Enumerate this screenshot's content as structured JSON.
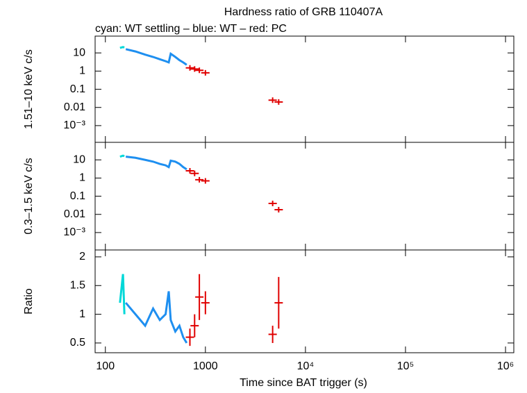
{
  "chart_data": [
    {
      "type": "scatter",
      "title": "Hardness ratio of GRB 110407A",
      "subtitle": "cyan: WT settling – blue: WT – red: PC",
      "ylabel": "1.51–10 keV c/s",
      "log_y": true,
      "ylim": [
        0.00012,
        84
      ],
      "yticks": [
        10,
        1,
        0.1,
        0.01,
        {
          "value": 0.001,
          "label": "10⁻³"
        }
      ],
      "series": [
        {
          "color": "#00d8d8",
          "marker": "line",
          "x": [
            140,
            150,
            155
          ],
          "values": [
            19,
            21,
            20
          ]
        },
        {
          "color": "#1e8ff0",
          "marker": "line",
          "x": [
            160,
            200,
            250,
            300,
            350,
            400,
            430,
            450,
            500,
            550,
            600,
            650
          ],
          "values": [
            16,
            12,
            8,
            6,
            4.5,
            3.5,
            3,
            9,
            6,
            4,
            3,
            2.2
          ]
        },
        {
          "color": "#e00000",
          "marker": "cross",
          "x": [
            700,
            780,
            870,
            1000,
            4700,
            5400
          ],
          "values": [
            1.5,
            1.3,
            1.1,
            0.8,
            0.025,
            0.02
          ]
        }
      ]
    },
    {
      "type": "scatter",
      "ylabel": "0.3–1.5 keV c/s",
      "log_y": true,
      "ylim": [
        0.00011,
        92
      ],
      "yticks": [
        10,
        1,
        0.1,
        0.01,
        {
          "value": 0.001,
          "label": "10⁻³"
        }
      ],
      "series": [
        {
          "color": "#00d8d8",
          "marker": "line",
          "x": [
            140,
            150,
            155
          ],
          "values": [
            15,
            17,
            16
          ]
        },
        {
          "color": "#1e8ff0",
          "marker": "line",
          "x": [
            160,
            200,
            250,
            300,
            350,
            400,
            430,
            450,
            500,
            550,
            600,
            650
          ],
          "values": [
            15,
            13,
            10,
            8,
            6,
            5,
            4,
            9,
            8,
            6,
            4,
            3
          ]
        },
        {
          "color": "#e00000",
          "marker": "cross",
          "x": [
            700,
            780,
            870,
            1000,
            4700,
            5400
          ],
          "values": [
            2.5,
            1.8,
            0.8,
            0.7,
            0.04,
            0.018
          ]
        }
      ]
    },
    {
      "type": "scatter",
      "ylabel": "Ratio",
      "xlabel": "Time since BAT trigger (s)",
      "log_x": true,
      "xlim": [
        79,
        1210000
      ],
      "xticks": [
        100,
        1000,
        {
          "value": 10000,
          "label": "10⁴"
        },
        {
          "value": 100000,
          "label": "10⁵"
        },
        {
          "value": 1000000,
          "label": "10⁶"
        }
      ],
      "log_y": false,
      "ylim": [
        0.33,
        2.12
      ],
      "yticks": [
        2,
        1.5,
        1,
        0.5
      ],
      "series": [
        {
          "color": "#00d8d8",
          "marker": "line",
          "x": [
            140,
            150,
            155
          ],
          "values": [
            1.2,
            1.7,
            1.0
          ]
        },
        {
          "color": "#1e8ff0",
          "marker": "line",
          "x": [
            160,
            200,
            250,
            300,
            350,
            400,
            430,
            450,
            500,
            550,
            600,
            650
          ],
          "values": [
            1.2,
            1.0,
            0.8,
            1.1,
            0.9,
            1.0,
            1.4,
            0.9,
            0.7,
            0.8,
            0.6,
            0.5
          ]
        },
        {
          "color": "#e00000",
          "marker": "cross",
          "x": [
            700,
            780,
            870,
            1000,
            4700,
            5400
          ],
          "values": [
            0.6,
            0.8,
            1.3,
            1.2,
            0.65,
            1.2
          ],
          "yerr": [
            0.15,
            0.2,
            0.4,
            0.2,
            0.15,
            0.45
          ]
        }
      ]
    }
  ]
}
